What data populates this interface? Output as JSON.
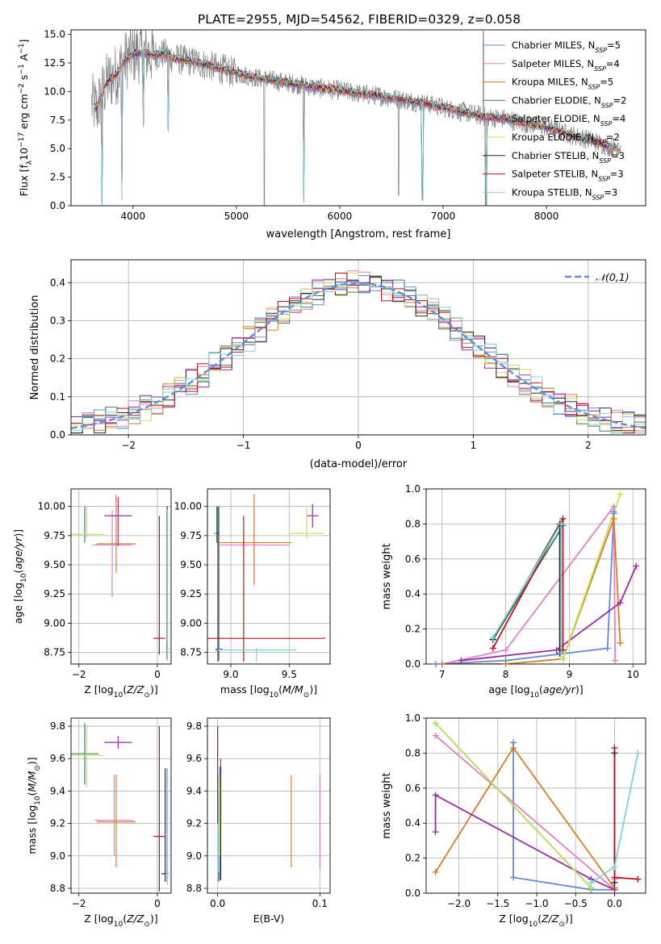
{
  "title": "PLATE=2955, MJD=54562, FIBERID=0329, z=0.058",
  "colors": {
    "c_miles": "#6688dd",
    "s_miles": "#e380c2",
    "k_miles": "#d97c27",
    "c_elodie": "#3f7f5f",
    "s_elodie": "#9b2aaa",
    "k_elodie": "#c5e35a",
    "c_stelib": "#2a2a2a",
    "s_stelib": "#c0101f",
    "k_stelib": "#7fd3d8",
    "observed": "#808080",
    "normal": "#5b8fd8"
  },
  "legend_entries": [
    {
      "text": "Chabrier MILES, N",
      "sub": "SSP",
      "tail": "=5",
      "color_key": "c_miles"
    },
    {
      "text": "Salpeter MILES, N",
      "sub": "SSP",
      "tail": "=4",
      "color_key": "s_miles"
    },
    {
      "text": "Kroupa MILES, N",
      "sub": "SSP",
      "tail": "=5",
      "color_key": "k_miles"
    },
    {
      "text": "Chabrier ELODIE, N",
      "sub": "SSP",
      "tail": "=2",
      "color_key": "c_elodie"
    },
    {
      "text": "Salpeter ELODIE, N",
      "sub": "SSP",
      "tail": "=4",
      "color_key": "s_elodie"
    },
    {
      "text": "Kroupa ELODIE, N",
      "sub": "SSP",
      "tail": "=2",
      "color_key": "k_elodie"
    },
    {
      "text": "Chabrier STELIB, N",
      "sub": "SSP",
      "tail": "=3",
      "color_key": "c_stelib"
    },
    {
      "text": "Salpeter STELIB, N",
      "sub": "SSP",
      "tail": "=3",
      "color_key": "s_stelib"
    },
    {
      "text": "Kroupa STELIB, N",
      "sub": "SSP",
      "tail": "=3",
      "color_key": "k_stelib"
    }
  ],
  "chart_data": [
    {
      "id": "spectrum",
      "type": "line",
      "title": "PLATE=2955, MJD=54562, FIBERID=0329, z=0.058",
      "xlabel": "wavelength [Angstrom, rest frame]",
      "ylabel": "Flux [f",
      "ylabel_parts": [
        "Flux [f",
        "λ",
        "10",
        "−17",
        " erg cm",
        "−2",
        " s",
        "−1",
        " A",
        "−1",
        "]"
      ],
      "xlim": [
        3400,
        8960
      ],
      "ylim": [
        0,
        15.4
      ],
      "xticks": [
        4000,
        5000,
        6000,
        7000,
        8000
      ],
      "yticks": [
        0.0,
        2.5,
        5.0,
        7.5,
        10.0,
        12.5,
        15.0
      ],
      "ytick_labels": [
        "0.0",
        "2.5",
        "5.0",
        "7.5",
        "10.0",
        "12.5",
        "15.0"
      ],
      "model_envelope": {
        "x": [
          3600,
          3650,
          3700,
          3750,
          3800,
          3850,
          3900,
          3950,
          4000,
          4100,
          4200,
          4300,
          4400,
          4500,
          4600,
          4800,
          5000,
          5200,
          5400,
          5600,
          5800,
          6000,
          6200,
          6400,
          6600,
          6800,
          7000,
          7200,
          7400,
          7600,
          7800,
          8000,
          8200,
          8400,
          8600,
          8700
        ],
        "y": [
          8.9,
          8.5,
          9.8,
          10.8,
          11.2,
          11.6,
          12.4,
          13.0,
          13.3,
          13.4,
          13.2,
          13.3,
          12.9,
          12.7,
          12.6,
          12.1,
          11.6,
          11.2,
          10.9,
          10.6,
          10.3,
          10.1,
          9.8,
          9.6,
          9.3,
          9.0,
          8.6,
          8.2,
          7.8,
          7.6,
          7.2,
          6.9,
          6.3,
          5.8,
          5.2,
          5.1
        ]
      },
      "model_dips": [
        {
          "x": 3700,
          "y": 0.0
        },
        {
          "x": 3890,
          "y": 0.5
        },
        {
          "x": 4100,
          "y": 6.9
        },
        {
          "x": 4340,
          "y": 6.5
        },
        {
          "x": 5650,
          "y": 0.3
        },
        {
          "x": 6800,
          "y": 0.5
        },
        {
          "x": 7420,
          "y": 0.0
        }
      ],
      "observed_spikes": [
        {
          "x": 5270,
          "y": 0.0
        },
        {
          "x": 6570,
          "y": 0.9
        },
        {
          "x": 7390,
          "y": 15.3
        },
        {
          "x": 7410,
          "y": 0.0
        }
      ]
    },
    {
      "id": "residuals",
      "type": "step",
      "xlabel": "(data-model)/error",
      "ylabel": "Normed distribution",
      "xlim": [
        -2.5,
        2.5
      ],
      "ylim": [
        0.0,
        0.46
      ],
      "xticks": [
        -2,
        -1,
        0,
        1,
        2
      ],
      "xtick_labels": [
        "−2",
        "−1",
        "0",
        "1",
        "2"
      ],
      "yticks": [
        0.0,
        0.1,
        0.2,
        0.3,
        0.4
      ],
      "ytick_labels": [
        "0.0",
        "0.1",
        "0.2",
        "0.3",
        "0.4"
      ],
      "bin_width": 0.1,
      "legend": "𝒩(0,1)"
    },
    {
      "id": "age_vs_Z",
      "type": "errorbar",
      "xlabel": "Z [log10(Z/Z⊙)]",
      "ylabel": "age  [log10(age/yr)]",
      "xlim": [
        -2.2,
        0.35
      ],
      "ylim": [
        8.65,
        10.15
      ],
      "xticks": [
        -2,
        0
      ],
      "xtick_labels": [
        "−2",
        "0"
      ],
      "yticks": [
        8.75,
        9.0,
        9.25,
        9.5,
        9.75,
        10.0
      ],
      "ytick_labels": [
        "8.75",
        "9.00",
        "9.25",
        "9.50",
        "9.75",
        "10.00"
      ],
      "points": [
        {
          "key": "c_miles",
          "x": 0.25,
          "y": 8.78,
          "xerr": 0.02,
          "yerr": [
            0.1,
            1.22
          ]
        },
        {
          "key": "s_miles",
          "x": -1.15,
          "y": 9.67,
          "xerr": 0.5,
          "yerr": [
            0.45,
            0.3
          ]
        },
        {
          "key": "k_miles",
          "x": -1.05,
          "y": 9.68,
          "xerr": 0.5,
          "yerr": [
            0.25,
            0.42
          ]
        },
        {
          "key": "c_elodie",
          "x": -1.85,
          "y": 9.76,
          "xerr": 0.35,
          "yerr": [
            0.07,
            0.24
          ]
        },
        {
          "key": "s_elodie",
          "x": -1.0,
          "y": 9.92,
          "xerr": 0.35,
          "yerr": [
            0.26,
            0.16
          ]
        },
        {
          "key": "k_elodie",
          "x": -1.8,
          "y": 9.76,
          "xerr": 0.45,
          "yerr": [
            0.03,
            0.24
          ]
        },
        {
          "key": "c_stelib",
          "x": 0.25,
          "y": 8.8,
          "xerr": 0.02,
          "yerr": [
            0.1,
            1.2
          ]
        },
        {
          "key": "s_stelib",
          "x": 0.05,
          "y": 8.87,
          "xerr": 0.15,
          "yerr": [
            0.14,
            1.05
          ]
        },
        {
          "key": "k_stelib",
          "x": 0.26,
          "y": 8.78,
          "xerr": 0.06,
          "yerr": [
            0.1,
            1.2
          ]
        }
      ]
    },
    {
      "id": "age_vs_mass",
      "type": "errorbar",
      "xlabel": "mass [log10(M/M⊙)]",
      "ylabel": "",
      "xlim": [
        8.8,
        9.85
      ],
      "ylim": [
        8.65,
        10.15
      ],
      "xticks": [
        9.0,
        9.5
      ],
      "xtick_labels": [
        "9.0",
        "9.5"
      ],
      "yticks": [
        8.75,
        9.0,
        9.25,
        9.5,
        9.75,
        10.0
      ],
      "ytick_labels": [
        "8.75",
        "9.00",
        "9.25",
        "9.50",
        "9.75",
        "10.00"
      ],
      "points": [
        {
          "key": "c_miles",
          "x": 8.9,
          "y": 8.78,
          "xerr": 0.03,
          "yerr": [
            0.1,
            1.22
          ]
        },
        {
          "key": "s_miles",
          "x": 9.2,
          "y": 9.67,
          "xerr": 0.3,
          "yerr": [
            0.35,
            0.35
          ]
        },
        {
          "key": "k_miles",
          "x": 9.2,
          "y": 9.69,
          "xerr": 0.32,
          "yerr": [
            0.35,
            0.42
          ]
        },
        {
          "key": "c_elodie",
          "x": 8.88,
          "y": 9.77,
          "xerr": 0.02,
          "yerr": [
            0.08,
            0.23
          ]
        },
        {
          "key": "s_elodie",
          "x": 9.7,
          "y": 9.92,
          "xerr": 0.05,
          "yerr": [
            0.1,
            0.1
          ]
        },
        {
          "key": "k_elodie",
          "x": 9.65,
          "y": 9.77,
          "xerr": 0.15,
          "yerr": [
            0.05,
            0.22
          ]
        },
        {
          "key": "c_stelib",
          "x": 8.89,
          "y": 8.77,
          "xerr": 0.02,
          "yerr": [
            0.1,
            1.23
          ]
        },
        {
          "key": "s_stelib",
          "x": 9.11,
          "y": 8.87,
          "xerr": 0.7,
          "yerr": [
            0.2,
            1.05
          ]
        },
        {
          "key": "k_stelib",
          "x": 9.22,
          "y": 8.77,
          "xerr": 0.34,
          "yerr": [
            0.1,
            0.02
          ]
        }
      ]
    },
    {
      "id": "weight_vs_age",
      "type": "line",
      "xlabel": "age  [log10(age/yr)]",
      "ylabel": "mass weight",
      "xlim": [
        6.75,
        10.2
      ],
      "ylim": [
        0.0,
        1.0
      ],
      "xticks": [
        7,
        8,
        9,
        10
      ],
      "xtick_labels": [
        "7",
        "8",
        "9",
        "10"
      ],
      "yticks": [
        0.0,
        0.2,
        0.4,
        0.6,
        0.8,
        1.0
      ],
      "ytick_labels": [
        "0.0",
        "0.2",
        "0.4",
        "0.6",
        "0.8",
        "1.0"
      ],
      "series": [
        {
          "key": "c_miles",
          "x": [
            6.9,
            8.0,
            9.6,
            9.7,
            9.7
          ],
          "y": [
            0.0,
            0.02,
            0.09,
            0.86,
            0.87
          ]
        },
        {
          "key": "s_miles",
          "x": [
            7.0,
            8.0,
            9.7,
            9.72
          ],
          "y": [
            0.0,
            0.08,
            0.9,
            0.02
          ]
        },
        {
          "key": "k_miles",
          "x": [
            7.0,
            8.0,
            8.9,
            9.7,
            9.8
          ],
          "y": [
            0.0,
            0.0,
            0.03,
            0.83,
            0.12
          ]
        },
        {
          "key": "c_elodie",
          "x": [
            7.8,
            8.9
          ],
          "y": [
            0.14,
            0.79
          ]
        },
        {
          "key": "s_elodie",
          "x": [
            7.3,
            8.8,
            9.8,
            10.05
          ],
          "y": [
            0.02,
            0.08,
            0.35,
            0.56
          ]
        },
        {
          "key": "k_elodie",
          "x": [
            8.9,
            9.8
          ],
          "y": [
            0.03,
            0.97
          ]
        },
        {
          "key": "c_stelib",
          "x": [
            7.8,
            8.85,
            8.85
          ],
          "y": [
            0.14,
            0.8,
            0.06
          ]
        },
        {
          "key": "s_stelib",
          "x": [
            7.8,
            8.9,
            8.9
          ],
          "y": [
            0.09,
            0.83,
            0.08
          ]
        },
        {
          "key": "k_stelib",
          "x": [
            7.8,
            8.87,
            8.87
          ],
          "y": [
            0.15,
            0.8,
            0.06
          ]
        }
      ]
    },
    {
      "id": "mass_vs_Z",
      "type": "errorbar",
      "xlabel": "Z [log10(Z/Z⊙)]",
      "ylabel": "mass [log10(M/M⊙)]",
      "xlim": [
        -2.2,
        0.35
      ],
      "ylim": [
        8.77,
        9.85
      ],
      "xticks": [
        -2,
        0
      ],
      "xtick_labels": [
        "−2",
        "0"
      ],
      "yticks": [
        8.8,
        9.0,
        9.2,
        9.4,
        9.6,
        9.8
      ],
      "ytick_labels": [
        "8.8",
        "9.0",
        "9.2",
        "9.4",
        "9.6",
        "9.8"
      ],
      "points": [
        {
          "key": "c_miles",
          "x": 0.25,
          "y": 8.9,
          "xerr": 0.02,
          "yerr": [
            0.06,
            0.64
          ]
        },
        {
          "key": "s_miles",
          "x": -1.1,
          "y": 9.22,
          "xerr": 0.5,
          "yerr": [
            0.22,
            0.28
          ]
        },
        {
          "key": "k_miles",
          "x": -1.05,
          "y": 9.21,
          "xerr": 0.5,
          "yerr": [
            0.28,
            0.29
          ]
        },
        {
          "key": "c_elodie",
          "x": -1.85,
          "y": 9.63,
          "xerr": 0.35,
          "yerr": [
            0.19,
            0.19
          ]
        },
        {
          "key": "s_elodie",
          "x": -1.0,
          "y": 9.7,
          "xerr": 0.35,
          "yerr": [
            0.04,
            0.04
          ]
        },
        {
          "key": "k_elodie",
          "x": -1.8,
          "y": 9.62,
          "xerr": 0.45,
          "yerr": [
            0.2,
            0.18
          ]
        },
        {
          "key": "c_stelib",
          "x": 0.2,
          "y": 8.89,
          "xerr": 0.1,
          "yerr": [
            0.05,
            0.65
          ]
        },
        {
          "key": "s_stelib",
          "x": 0.05,
          "y": 9.12,
          "xerr": 0.15,
          "yerr": [
            0.34,
            0.68
          ]
        },
        {
          "key": "k_stelib",
          "x": 0.26,
          "y": 8.89,
          "xerr": 0.04,
          "yerr": [
            0.07,
            0.63
          ]
        }
      ]
    },
    {
      "id": "mass_vs_EBV",
      "type": "errorbar",
      "xlabel": "E(B-V)",
      "ylabel": "",
      "xlim": [
        -0.01,
        0.11
      ],
      "ylim": [
        8.77,
        9.85
      ],
      "xticks": [
        0.0,
        0.1
      ],
      "xtick_labels": [
        "0.0",
        "0.1"
      ],
      "yticks": [
        8.8,
        9.0,
        9.2,
        9.4,
        9.6,
        9.8
      ],
      "ytick_labels": [
        "8.8",
        "9.0",
        "9.2",
        "9.4",
        "9.6",
        "9.8"
      ],
      "points": [
        {
          "key": "c_miles",
          "x": 0.002,
          "y": 9.2,
          "xerr": 0,
          "yerr": [
            0.35,
            0.35
          ]
        },
        {
          "key": "s_miles",
          "x": 0.1,
          "y": 9.2,
          "xerr": 0,
          "yerr": [
            0.28,
            0.3
          ]
        },
        {
          "key": "k_miles",
          "x": 0.072,
          "y": 9.21,
          "xerr": 0,
          "yerr": [
            0.28,
            0.29
          ]
        },
        {
          "key": "c_elodie",
          "x": 0.001,
          "y": 9.2,
          "xerr": 0,
          "yerr": [
            0.36,
            0.2
          ]
        },
        {
          "key": "s_elodie",
          "x": 0.003,
          "y": 9.3,
          "xerr": 0,
          "yerr": [
            0.1,
            0.3
          ]
        },
        {
          "key": "k_elodie",
          "x": 0.002,
          "y": 9.2,
          "xerr": 0,
          "yerr": [
            0.2,
            0.3
          ]
        },
        {
          "key": "c_stelib",
          "x": 0.003,
          "y": 9.15,
          "xerr": 0,
          "yerr": [
            0.3,
            0.4
          ]
        },
        {
          "key": "s_stelib",
          "x": 0.0,
          "y": 9.3,
          "xerr": 0,
          "yerr": [
            0.1,
            0.5
          ]
        },
        {
          "key": "k_stelib",
          "x": 0.001,
          "y": 9.2,
          "xerr": 0,
          "yerr": [
            0.3,
            0.3
          ]
        }
      ]
    },
    {
      "id": "weight_vs_Z",
      "type": "line",
      "xlabel": "Z [log10(Z/Z⊙)]",
      "ylabel": "mass weight",
      "xlim": [
        -2.42,
        0.4
      ],
      "ylim": [
        0.0,
        1.0
      ],
      "xticks": [
        -2.0,
        -1.5,
        -1.0,
        -0.5,
        0.0
      ],
      "xtick_labels": [
        "−2.0",
        "−1.5",
        "−1.0",
        "−0.5",
        "0.0"
      ],
      "yticks": [
        0.0,
        0.2,
        0.4,
        0.6,
        0.8,
        1.0
      ],
      "ytick_labels": [
        "0.0",
        "0.2",
        "0.4",
        "0.6",
        "0.8",
        "1.0"
      ],
      "series": [
        {
          "key": "c_miles",
          "x": [
            -1.3,
            -1.3,
            -0.3,
            0.0
          ],
          "y": [
            0.86,
            0.09,
            0.02,
            0.02
          ]
        },
        {
          "key": "s_miles",
          "x": [
            -2.3,
            0.0,
            0.0
          ],
          "y": [
            0.9,
            0.02,
            0.08
          ]
        },
        {
          "key": "k_miles",
          "x": [
            -2.3,
            -1.3,
            0.0
          ],
          "y": [
            0.12,
            0.83,
            0.03
          ]
        },
        {
          "key": "c_elodie",
          "x": [
            -2.3,
            -0.3
          ],
          "y": [
            0.97,
            0.03
          ]
        },
        {
          "key": "s_elodie",
          "x": [
            -2.3,
            -2.3,
            -0.3,
            0.0
          ],
          "y": [
            0.35,
            0.56,
            0.08,
            0.02
          ]
        },
        {
          "key": "k_elodie",
          "x": [
            -2.3,
            -0.3
          ],
          "y": [
            0.97,
            0.03
          ]
        },
        {
          "key": "c_stelib",
          "x": [
            0.0,
            0.0
          ],
          "y": [
            0.06,
            0.8
          ]
        },
        {
          "key": "s_stelib",
          "x": [
            0.0,
            0.0,
            0.3
          ],
          "y": [
            0.83,
            0.09,
            0.08
          ]
        },
        {
          "key": "k_stelib",
          "x": [
            -0.3,
            0.0,
            0.3
          ],
          "y": [
            0.06,
            0.15,
            0.8
          ]
        }
      ]
    }
  ]
}
